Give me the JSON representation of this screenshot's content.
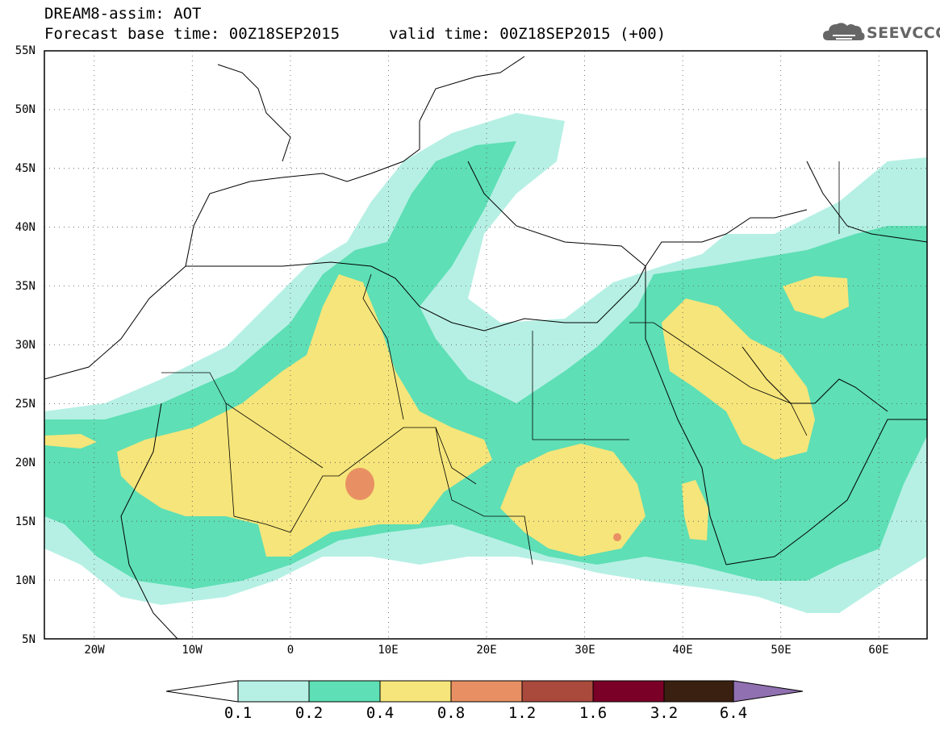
{
  "header": {
    "title_line1": "DREAM8-assim: AOT",
    "base_time": "Forecast base time: 00Z18SEP2015",
    "valid_time": "valid time: 00Z18SEP2015 (+00)"
  },
  "logo": {
    "text": "SEEVCCC",
    "icon": "cloud-icon"
  },
  "map": {
    "lat_labels": [
      "55N",
      "50N",
      "45N",
      "40N",
      "35N",
      "30N",
      "25N",
      "20N",
      "15N",
      "10N",
      "5N"
    ],
    "lon_labels": [
      "20W",
      "10W",
      "0",
      "10E",
      "20E",
      "30E",
      "40E",
      "50E",
      "60E"
    ],
    "lat_range": [
      5,
      55
    ],
    "lon_range": [
      -25,
      65
    ],
    "grid": "dotted"
  },
  "colorbar": {
    "levels": [
      "0.1",
      "0.2",
      "0.4",
      "0.8",
      "1.2",
      "1.6",
      "3.2",
      "6.4"
    ],
    "colors": {
      "below": "#ffffff",
      "c1": "#b6f0e4",
      "c2": "#5edfb5",
      "c3": "#f6e57a",
      "c4": "#e89064",
      "c5": "#aa4a3c",
      "c6": "#7a0028",
      "c7": "#3a2010",
      "above": "#9070b0"
    }
  }
}
